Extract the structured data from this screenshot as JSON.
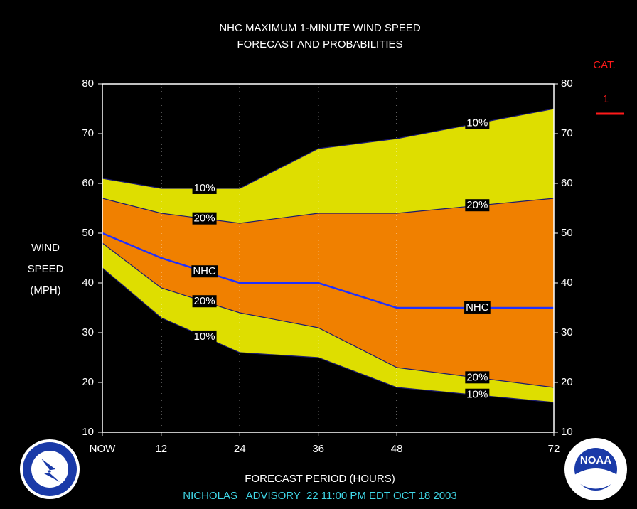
{
  "chart_data": {
    "type": "band",
    "title": [
      "NHC MAXIMUM 1-MINUTE WIND SPEED",
      "FORECAST AND PROBABILITIES"
    ],
    "y_label": [
      "WIND",
      "SPEED",
      "(MPH)"
    ],
    "x_label": "FORECAST PERIOD (HOURS)",
    "footer": "NICHOLAS   ADVISORY  22 11:00 PM EDT OCT 18 2003",
    "x": [
      3,
      12,
      24,
      36,
      48,
      72
    ],
    "xlim": [
      3,
      72
    ],
    "xticks": [
      {
        "value": 3,
        "label": "NOW"
      },
      12,
      24,
      36,
      48,
      72
    ],
    "ylim": [
      10,
      80
    ],
    "yticks": [
      10,
      20,
      30,
      40,
      50,
      60,
      70,
      80
    ],
    "grid": true,
    "series": [
      {
        "name": "10%",
        "color": "#1a1a70",
        "values": [
          61,
          59,
          59,
          67,
          69,
          75
        ]
      },
      {
        "name": "20%",
        "color": "#1a1a70",
        "values": [
          57,
          54,
          52,
          54,
          54,
          57
        ]
      },
      {
        "name": "NHC",
        "color": "#2030ff",
        "values": [
          50,
          45,
          40,
          40,
          35,
          35
        ]
      },
      {
        "name": "20%",
        "color": "#1a1a70",
        "values": [
          48,
          39,
          34,
          31,
          23,
          19
        ]
      },
      {
        "name": "10%",
        "color": "#1a1a70",
        "values": [
          43,
          33,
          26,
          25,
          19,
          16
        ]
      }
    ],
    "bands": [
      {
        "color": "#dede00"
      },
      {
        "color": "#f08000"
      }
    ],
    "category": {
      "title": "CAT.",
      "label": "1",
      "value": 74,
      "color": "#ff1a1a"
    }
  }
}
